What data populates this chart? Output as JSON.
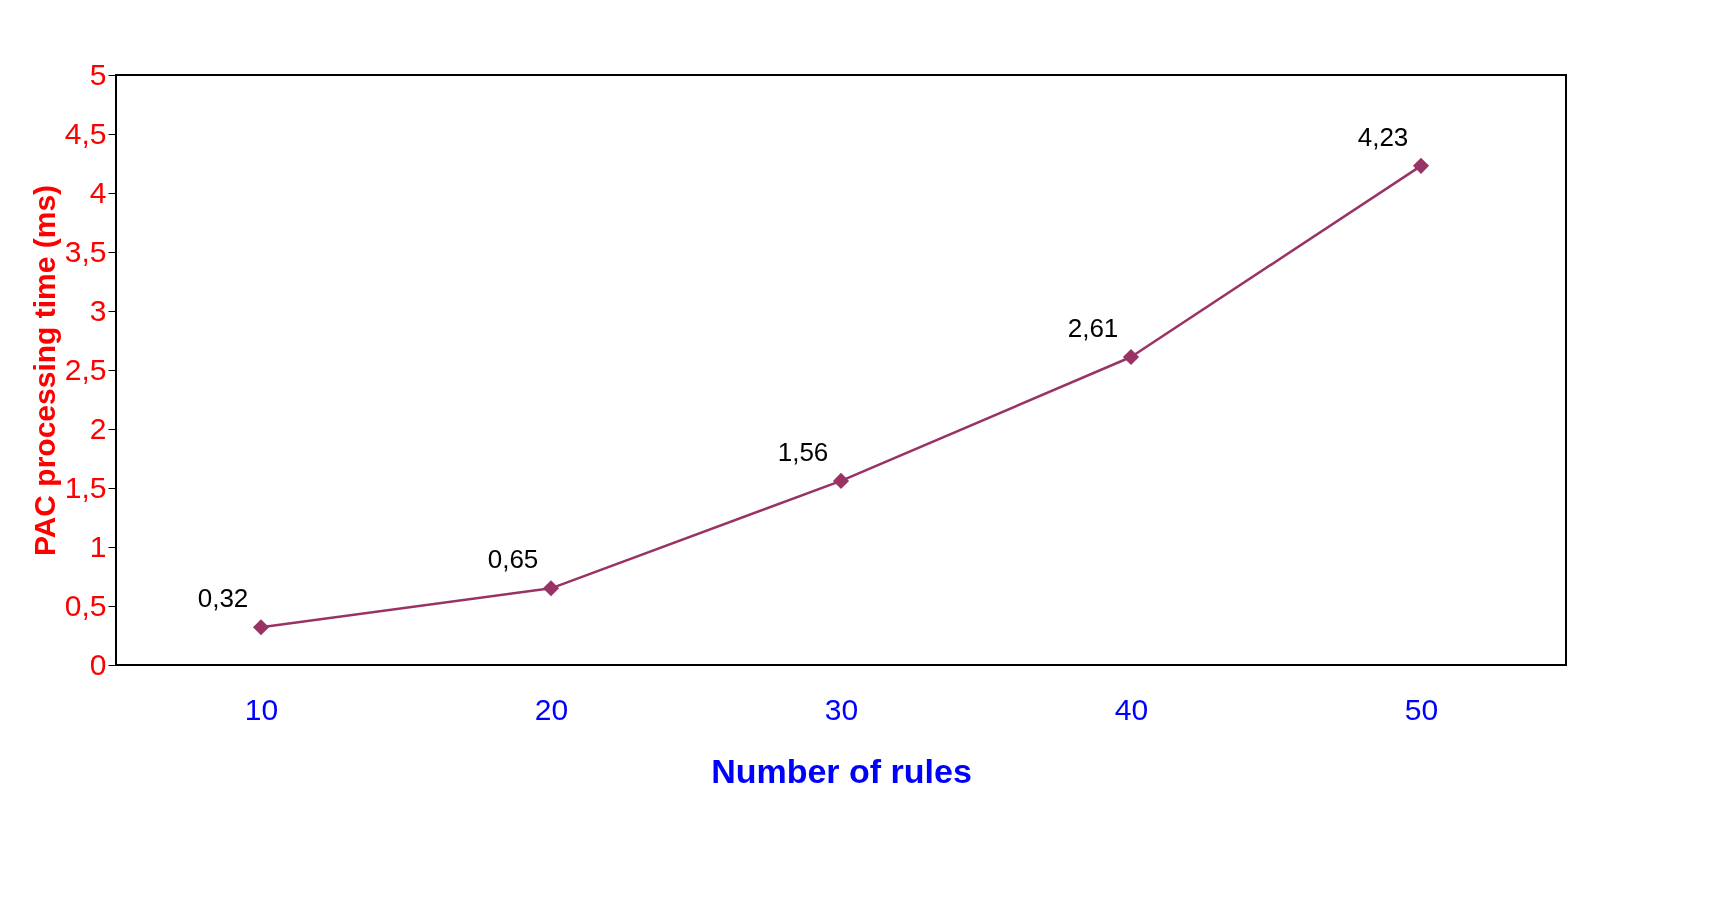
{
  "chart_data": {
    "type": "line",
    "xlabel": "Number of rules",
    "ylabel": "PAC processing time (ms)",
    "categories": [
      "10",
      "20",
      "30",
      "40",
      "50"
    ],
    "series": [
      {
        "color": "#993366",
        "values": [
          0.32,
          0.65,
          1.56,
          2.61,
          4.23
        ],
        "value_labels": [
          "0,32",
          "0,65",
          "1,56",
          "2,61",
          "4,23"
        ]
      }
    ],
    "ylim": [
      0,
      5
    ],
    "yticks": [
      0,
      {
        "value": 0.5,
        "label": "0,5"
      },
      1,
      {
        "value": 1.5,
        "label": "1,5"
      },
      2,
      {
        "value": 2.5,
        "label": "2,5"
      },
      3,
      {
        "value": 3.5,
        "label": "3,5"
      },
      4,
      {
        "value": 4.5,
        "label": "4,5"
      },
      5
    ],
    "grid": false,
    "marker": "diamond",
    "line_style": "solid"
  }
}
